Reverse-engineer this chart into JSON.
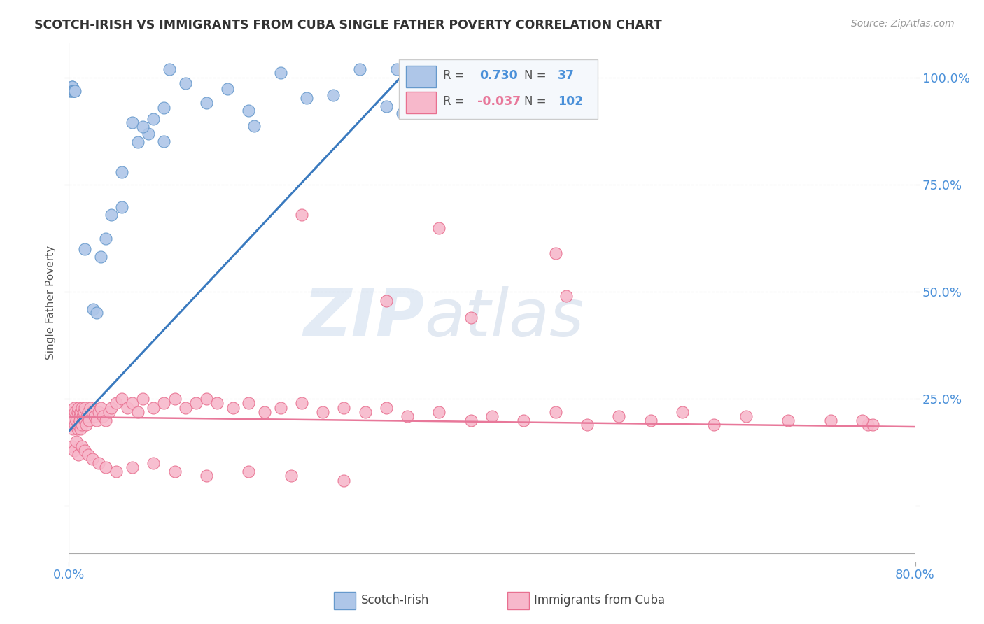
{
  "title": "SCOTCH-IRISH VS IMMIGRANTS FROM CUBA SINGLE FATHER POVERTY CORRELATION CHART",
  "source": "Source: ZipAtlas.com",
  "ylabel": "Single Father Poverty",
  "xmin": 0.0,
  "xmax": 0.8,
  "ymin": -0.13,
  "ymax": 1.08,
  "scotch_irish_color": "#aec6e8",
  "cuba_color": "#f7b8cb",
  "scotch_irish_edge_color": "#6699cc",
  "cuba_edge_color": "#e87090",
  "scotch_irish_line_color": "#3a7abf",
  "cuba_line_color": "#e8789a",
  "background_color": "#ffffff",
  "grid_color": "#cccccc",
  "title_color": "#333333",
  "axis_label_color": "#4a90d9",
  "watermark_color": "#d0dff0",
  "ytick_vals": [
    0.0,
    0.25,
    0.5,
    0.75,
    1.0
  ],
  "ytick_labels": [
    "",
    "25.0%",
    "50.0%",
    "75.0%",
    "100.0%"
  ],
  "xtick_vals": [
    0.0,
    0.8
  ],
  "xtick_labels": [
    "0.0%",
    "80.0%"
  ],
  "si_line_x0": 0.0,
  "si_line_y0": 0.175,
  "si_line_x1": 0.315,
  "si_line_y1": 1.005,
  "cu_line_x0": 0.0,
  "cu_line_y0": 0.208,
  "cu_line_x1": 0.8,
  "cu_line_y1": 0.185
}
